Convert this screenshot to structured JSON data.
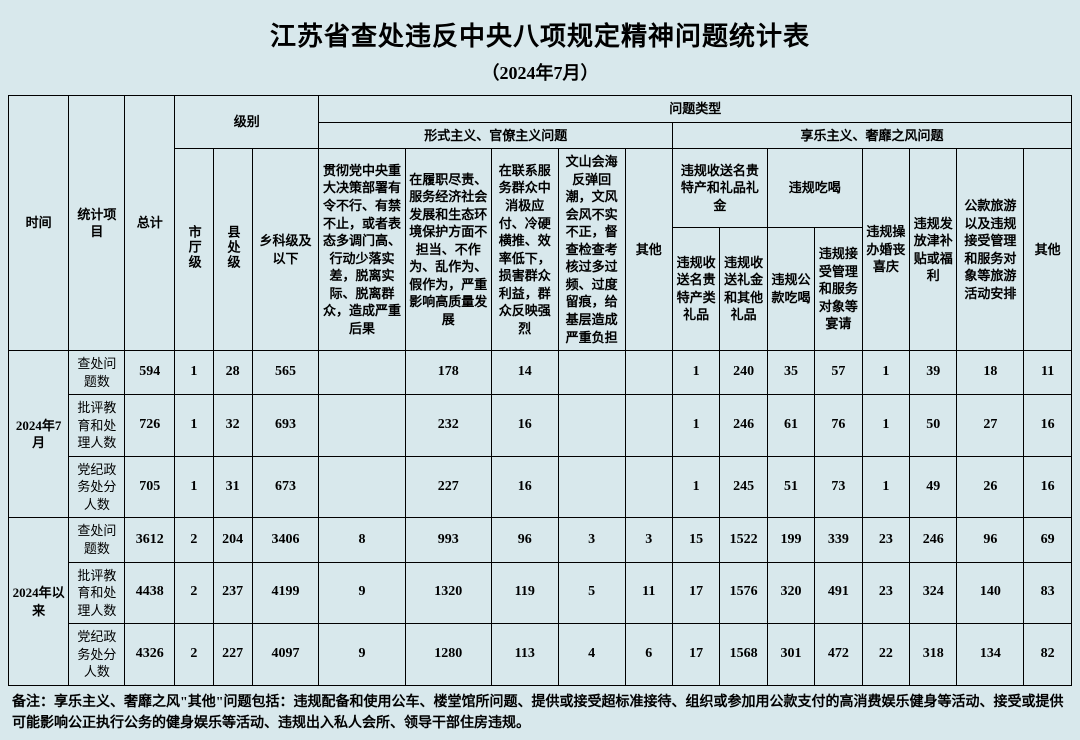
{
  "title": "江苏省查处违反中央八项规定精神问题统计表",
  "subtitle": "（2024年7月）",
  "headers": {
    "time": "时间",
    "item": "统计项目",
    "total": "总计",
    "level": "级别",
    "level_cols": [
      "市厅级",
      "县处级",
      "乡科级及以下"
    ],
    "type": "问题类型",
    "type_group1": "形式主义、官僚主义问题",
    "type_group2": "享乐主义、奢靡之风问题",
    "g1_cols": [
      "贯彻党中央重大决策部署有令不行、有禁不止，或者表态多调门高、行动少落实差，脱离实际、脱离群众，造成严重后果",
      "在履职尽责、服务经济社会发展和生态环境保护方面不担当、不作为、乱作为、假作为，严重影响高质量发展",
      "在联系服务群众中消极应付、冷硬横推、效率低下，损害群众利益，群众反映强烈",
      "文山会海反弹回潮，文风会风不实不正，督查检查考核过多过频、过度留痕，给基层造成严重负担",
      "其他"
    ],
    "g2_sub1": "违规收送名贵特产和礼品礼金",
    "g2_sub1_cols": [
      "违规收送名贵特产类礼品",
      "违规收送礼金和其他礼品"
    ],
    "g2_sub2": "违规吃喝",
    "g2_sub2_cols": [
      "违规公款吃喝",
      "违规接受管理和服务对象等宴请"
    ],
    "g2_cols_rest": [
      "违规操办婚丧喜庆",
      "违规发放津补贴或福利",
      "公款旅游以及违规接受管理和服务对象等旅游活动安排",
      "其他"
    ]
  },
  "periods": [
    {
      "label": "2024年7月",
      "rows": [
        {
          "item": "查处问题数",
          "total": "594",
          "lvl": [
            "1",
            "28",
            "565"
          ],
          "g1": [
            "",
            "178",
            "14",
            "",
            ""
          ],
          "g2": [
            "1",
            "240",
            "35",
            "57",
            "1",
            "39",
            "18",
            "11"
          ]
        },
        {
          "item": "批评教育和处理人数",
          "total": "726",
          "lvl": [
            "1",
            "32",
            "693"
          ],
          "g1": [
            "",
            "232",
            "16",
            "",
            ""
          ],
          "g2": [
            "1",
            "246",
            "61",
            "76",
            "1",
            "50",
            "27",
            "16"
          ]
        },
        {
          "item": "党纪政务处分人数",
          "total": "705",
          "lvl": [
            "1",
            "31",
            "673"
          ],
          "g1": [
            "",
            "227",
            "16",
            "",
            ""
          ],
          "g2": [
            "1",
            "245",
            "51",
            "73",
            "1",
            "49",
            "26",
            "16"
          ]
        }
      ]
    },
    {
      "label": "2024年以来",
      "rows": [
        {
          "item": "查处问题数",
          "total": "3612",
          "lvl": [
            "2",
            "204",
            "3406"
          ],
          "g1": [
            "8",
            "993",
            "96",
            "3",
            "3"
          ],
          "g2": [
            "15",
            "1522",
            "199",
            "339",
            "23",
            "246",
            "96",
            "69"
          ]
        },
        {
          "item": "批评教育和处理人数",
          "total": "4438",
          "lvl": [
            "2",
            "237",
            "4199"
          ],
          "g1": [
            "9",
            "1320",
            "119",
            "5",
            "11"
          ],
          "g2": [
            "17",
            "1576",
            "320",
            "491",
            "23",
            "324",
            "140",
            "83"
          ]
        },
        {
          "item": "党纪政务处分人数",
          "total": "4326",
          "lvl": [
            "2",
            "227",
            "4097"
          ],
          "g1": [
            "9",
            "1280",
            "113",
            "4",
            "6"
          ],
          "g2": [
            "17",
            "1568",
            "301",
            "472",
            "22",
            "318",
            "134",
            "82"
          ]
        }
      ]
    }
  ],
  "note": "备注：享乐主义、奢靡之风\"其他\"问题包括：违规配备和使用公车、楼堂馆所问题、提供或接受超标准接待、组织或参加用公款支付的高消费娱乐健身等活动、接受或提供可能影响公正执行公务的健身娱乐等活动、违规出入私人会所、领导干部住房违规。",
  "style": {
    "background": "#d8e8ec",
    "border_color": "#000000",
    "title_fontsize": 26,
    "subtitle_fontsize": 18,
    "header_fontsize": 13,
    "data_fontsize": 14,
    "note_fontsize": 14
  }
}
